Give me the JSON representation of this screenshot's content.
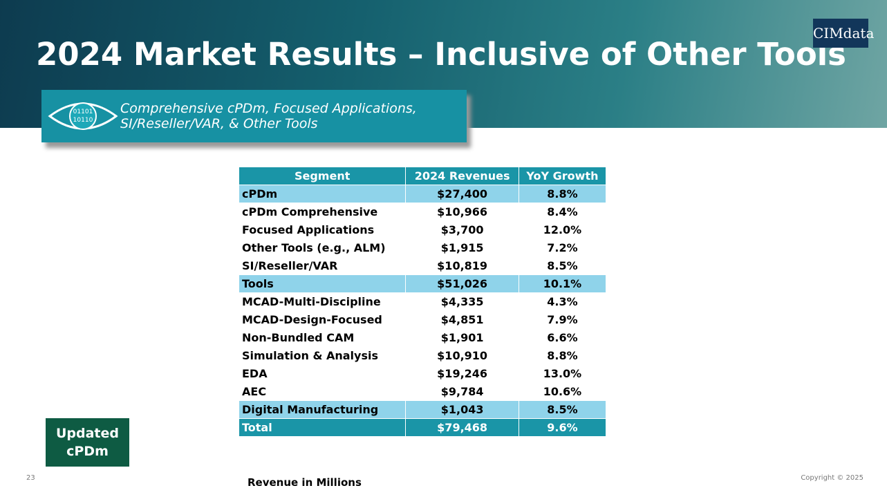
{
  "header": {
    "title": "2024 Market Results – Inclusive of Other Tools",
    "logo": "CIMdata",
    "subtitle_lines": [
      "Comprehensive cPDm, Focused Applications,",
      "SI/Reseller/VAR, & Other Tools"
    ],
    "icon_lines": [
      "01101",
      "10110"
    ]
  },
  "table": {
    "header": [
      "Segment",
      "2024 Revenues",
      "YoY Growth"
    ],
    "groups": [
      {
        "row": [
          "cPDm",
          "$27,400",
          "8.8%"
        ],
        "children": [
          [
            "cPDm Comprehensive",
            "$10,966",
            "8.4%"
          ],
          [
            "Focused Applications",
            "$3,700",
            "12.0%"
          ],
          [
            "Other Tools (e.g., ALM)",
            "$1,915",
            "7.2%"
          ],
          [
            "SI/Reseller/VAR",
            "$10,819",
            "8.5%"
          ]
        ]
      },
      {
        "row": [
          "Tools",
          "$51,026",
          "10.1%"
        ],
        "children": [
          [
            "MCAD-Multi-Discipline",
            "$4,335",
            "4.3%"
          ],
          [
            "MCAD-Design-Focused",
            "$4,851",
            "7.9%"
          ],
          [
            "Non-Bundled CAM",
            "$1,901",
            "6.6%"
          ],
          [
            "Simulation & Analysis",
            "$10,910",
            "8.8%"
          ],
          [
            "EDA",
            "$19,246",
            "13.0%"
          ],
          [
            "AEC",
            "$9,784",
            "10.6%"
          ]
        ]
      },
      {
        "row": [
          "Digital Manufacturing",
          "$1,043",
          "8.5%"
        ]
      }
    ],
    "total": [
      "Total",
      "$79,468",
      "9.6%"
    ]
  },
  "badge": [
    "Updated",
    "cPDm"
  ],
  "footer": {
    "page_number": "23",
    "note": "Revenue in Millions",
    "copyright": "Copyright © 2025"
  }
}
